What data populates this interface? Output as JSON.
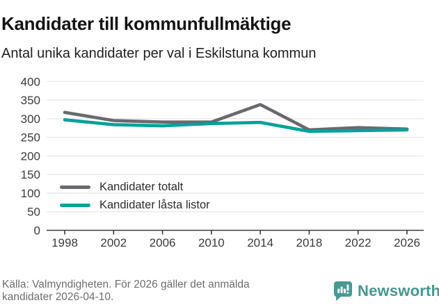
{
  "header": {
    "title": "Kandidater till kommunfullmäktige",
    "subtitle": "Antal unika kandidater per val i Eskilstuna kommun"
  },
  "chart_data": {
    "type": "line",
    "x": [
      1998,
      2002,
      2006,
      2010,
      2014,
      2018,
      2022,
      2026
    ],
    "series": [
      {
        "name": "Kandidater totalt",
        "color": "#6a696e",
        "values": [
          317,
          295,
          291,
          291,
          338,
          270,
          276,
          272
        ]
      },
      {
        "name": "Kandidater låsta listor",
        "color": "#00a29a",
        "values": [
          297,
          284,
          281,
          287,
          290,
          266,
          268,
          270
        ]
      }
    ],
    "ylim": [
      0,
      400
    ],
    "ytick_step": 50,
    "grid": "horizontal-gridlines",
    "grid_color": "#e8e8e8",
    "axis_color": "#3a3a3a",
    "tick_label_color": "#3c3c3c",
    "legend_position": "inside-lower-left"
  },
  "footer": {
    "source": "Källa: Valmyndigheten. För 2026 gäller det anmälda kandidater 2026-04-10."
  },
  "logo": {
    "text": "Newsworthy",
    "color": "#44998f",
    "icon": "bar-chart-speech-bubble-icon",
    "icon_color": "#459a94"
  }
}
